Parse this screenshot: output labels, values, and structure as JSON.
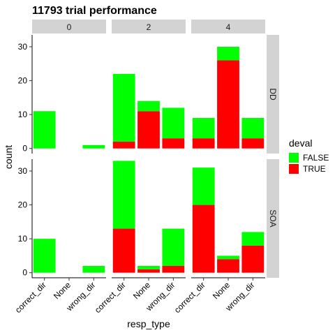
{
  "chart_data": {
    "type": "bar",
    "stacked": true,
    "title": "11793 trial performance",
    "xlabel": "resp_type",
    "ylabel": "count",
    "categories": [
      "correct_dir",
      "None",
      "wrong_dir"
    ],
    "col_facets": [
      "0",
      "2",
      "4"
    ],
    "row_facets": [
      "DD",
      "SOA"
    ],
    "ylim": [
      -1.5,
      33.5
    ],
    "yticks": [
      0,
      10,
      20,
      30
    ],
    "grid": false,
    "legend": {
      "title": "deval",
      "placement": "right",
      "entries": [
        {
          "label": "FALSE",
          "color": "#00ff00"
        },
        {
          "label": "TRUE",
          "color": "#ff0000"
        }
      ]
    },
    "panels": [
      {
        "row": "DD",
        "col": "0",
        "false_counts": [
          11,
          0,
          1
        ],
        "true_counts": [
          0,
          0,
          0
        ]
      },
      {
        "row": "DD",
        "col": "2",
        "false_counts": [
          20,
          3,
          9
        ],
        "true_counts": [
          2,
          11,
          3
        ]
      },
      {
        "row": "DD",
        "col": "4",
        "false_counts": [
          6,
          4,
          6
        ],
        "true_counts": [
          3,
          26,
          3
        ]
      },
      {
        "row": "SOA",
        "col": "0",
        "false_counts": [
          10,
          0,
          2
        ],
        "true_counts": [
          0,
          0,
          0
        ]
      },
      {
        "row": "SOA",
        "col": "2",
        "false_counts": [
          20,
          1,
          11
        ],
        "true_counts": [
          13,
          1,
          2
        ]
      },
      {
        "row": "SOA",
        "col": "4",
        "false_counts": [
          11,
          1,
          4
        ],
        "true_counts": [
          20,
          4,
          8
        ]
      }
    ]
  }
}
